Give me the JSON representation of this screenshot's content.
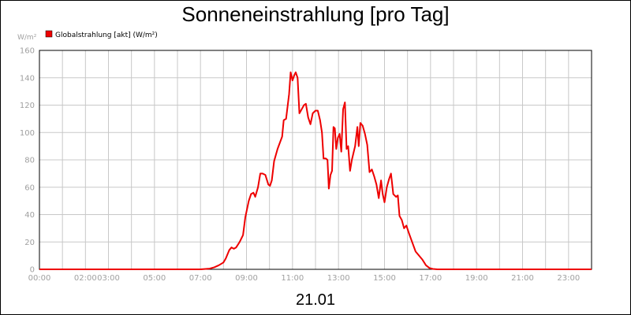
{
  "chart_data": {
    "type": "line",
    "title": "Sonneneinstrahlung [pro Tag]",
    "y_unit": "W/m²",
    "xlabel": "21.01",
    "ylim": [
      0,
      160
    ],
    "yticks": [
      0,
      20,
      40,
      60,
      80,
      100,
      120,
      140,
      160
    ],
    "xlim": [
      0,
      24
    ],
    "xtick_labels": [
      {
        "label": "00:00",
        "hour": 0
      },
      {
        "label": "02:00",
        "hour": 2
      },
      {
        "label": "03:00",
        "hour": 3
      },
      {
        "label": "05:00",
        "hour": 5
      },
      {
        "label": "07:00",
        "hour": 7
      },
      {
        "label": "09:00",
        "hour": 9
      },
      {
        "label": "11:00",
        "hour": 11
      },
      {
        "label": "13:00",
        "hour": 13
      },
      {
        "label": "15:00",
        "hour": 15
      },
      {
        "label": "17:00",
        "hour": 17
      },
      {
        "label": "19:00",
        "hour": 19
      },
      {
        "label": "21:00",
        "hour": 21
      },
      {
        "label": "23:00",
        "hour": 23
      }
    ],
    "grid": true,
    "legend_position": "top-left",
    "series": [
      {
        "name": "Globalstrahlung [akt] (W/m²)",
        "color": "#ee0000",
        "points": [
          [
            0,
            0
          ],
          [
            7.0,
            0
          ],
          [
            7.4,
            0.5
          ],
          [
            7.6,
            1.5
          ],
          [
            7.8,
            3
          ],
          [
            8.0,
            5
          ],
          [
            8.1,
            8
          ],
          [
            8.25,
            14
          ],
          [
            8.35,
            16
          ],
          [
            8.45,
            15
          ],
          [
            8.55,
            16
          ],
          [
            8.7,
            20
          ],
          [
            8.85,
            25
          ],
          [
            8.95,
            38
          ],
          [
            9.1,
            50
          ],
          [
            9.2,
            55
          ],
          [
            9.3,
            56
          ],
          [
            9.38,
            53
          ],
          [
            9.5,
            60
          ],
          [
            9.6,
            70
          ],
          [
            9.7,
            70
          ],
          [
            9.82,
            69
          ],
          [
            9.95,
            62
          ],
          [
            10.02,
            61
          ],
          [
            10.1,
            65
          ],
          [
            10.2,
            79
          ],
          [
            10.35,
            88
          ],
          [
            10.55,
            97
          ],
          [
            10.62,
            109
          ],
          [
            10.72,
            110
          ],
          [
            10.85,
            128
          ],
          [
            10.92,
            144
          ],
          [
            11.0,
            138
          ],
          [
            11.08,
            142
          ],
          [
            11.14,
            144
          ],
          [
            11.22,
            140
          ],
          [
            11.3,
            114
          ],
          [
            11.4,
            117
          ],
          [
            11.5,
            120
          ],
          [
            11.58,
            121
          ],
          [
            11.68,
            111
          ],
          [
            11.78,
            106
          ],
          [
            11.88,
            114
          ],
          [
            12.0,
            116
          ],
          [
            12.1,
            116
          ],
          [
            12.2,
            109
          ],
          [
            12.28,
            100
          ],
          [
            12.35,
            81
          ],
          [
            12.45,
            81
          ],
          [
            12.52,
            80
          ],
          [
            12.58,
            59
          ],
          [
            12.65,
            69
          ],
          [
            12.72,
            72
          ],
          [
            12.78,
            104
          ],
          [
            12.84,
            103
          ],
          [
            12.9,
            88
          ],
          [
            12.97,
            96
          ],
          [
            13.05,
            99
          ],
          [
            13.12,
            86
          ],
          [
            13.2,
            117
          ],
          [
            13.28,
            122
          ],
          [
            13.35,
            88
          ],
          [
            13.42,
            90
          ],
          [
            13.5,
            72
          ],
          [
            13.58,
            80
          ],
          [
            13.72,
            90
          ],
          [
            13.82,
            104
          ],
          [
            13.88,
            90
          ],
          [
            13.95,
            107
          ],
          [
            14.05,
            105
          ],
          [
            14.15,
            99
          ],
          [
            14.25,
            91
          ],
          [
            14.35,
            71
          ],
          [
            14.45,
            73
          ],
          [
            14.55,
            68
          ],
          [
            14.65,
            62
          ],
          [
            14.75,
            52
          ],
          [
            14.85,
            65
          ],
          [
            14.92,
            55
          ],
          [
            15.0,
            49
          ],
          [
            15.1,
            60
          ],
          [
            15.2,
            66
          ],
          [
            15.28,
            70
          ],
          [
            15.38,
            55
          ],
          [
            15.5,
            53
          ],
          [
            15.58,
            54
          ],
          [
            15.65,
            39
          ],
          [
            15.75,
            36
          ],
          [
            15.85,
            30
          ],
          [
            15.95,
            32
          ],
          [
            16.05,
            27
          ],
          [
            16.2,
            20
          ],
          [
            16.35,
            13
          ],
          [
            16.5,
            10
          ],
          [
            16.65,
            7
          ],
          [
            16.8,
            3
          ],
          [
            16.95,
            1
          ],
          [
            17.1,
            0.3
          ],
          [
            17.3,
            0
          ],
          [
            24,
            0
          ]
        ]
      }
    ]
  }
}
